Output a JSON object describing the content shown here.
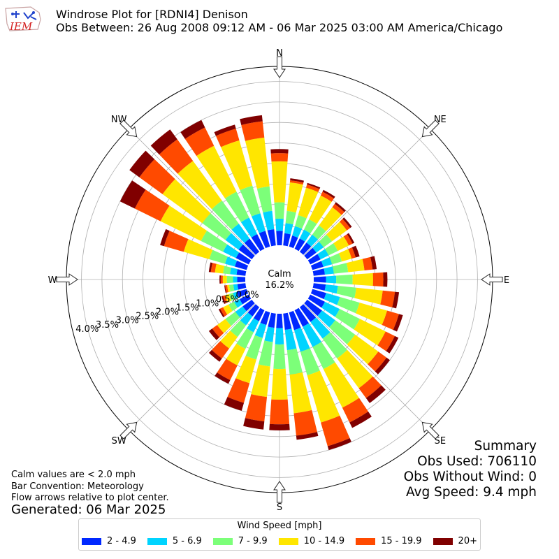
{
  "header": {
    "logo_text": "IEM",
    "title_line1": "Windrose Plot for [RDNI4] Denison",
    "title_line2": "Obs Between: 26 Aug 2008 09:12 AM - 06 Mar 2025 03:00 AM America/Chicago"
  },
  "notes": {
    "calm": "Calm values are < 2.0 mph",
    "convention": "Bar Convention: Meteorology",
    "flow": "Flow arrows relative to plot center.",
    "generated": "Generated: 06 Mar 2025"
  },
  "summary": {
    "heading": "Summary",
    "obs_used": "Obs Used: 706110",
    "obs_without_wind": "Obs Without Wind: 0",
    "avg_speed": "Avg Speed: 9.4 mph"
  },
  "legend": {
    "title": "Wind Speed [mph]",
    "items": [
      {
        "label": "2 - 4.9",
        "color": "#0028ff"
      },
      {
        "label": "5 - 6.9",
        "color": "#00d4ff"
      },
      {
        "label": "7 - 9.9",
        "color": "#7cff79"
      },
      {
        "label": "10 - 14.9",
        "color": "#ffe600"
      },
      {
        "label": "15 - 19.9",
        "color": "#ff4a00"
      },
      {
        "label": "20+",
        "color": "#800000"
      }
    ]
  },
  "chart_data": {
    "type": "windrose",
    "calm_label": "Calm",
    "calm_value": "16.2%",
    "radial_unit": "%",
    "radial_ticks": [
      "0.0%",
      "0.5%",
      "1.0%",
      "1.5%",
      "2.0%",
      "2.5%",
      "3.0%",
      "3.5%",
      "4.0%"
    ],
    "compass_labels": [
      "N",
      "NE",
      "E",
      "SE",
      "S",
      "SW",
      "W",
      "NW"
    ],
    "speed_bins": [
      "2 - 4.9",
      "5 - 6.9",
      "7 - 9.9",
      "10 - 14.9",
      "15 - 19.9",
      "20+"
    ],
    "bin_colors": [
      "#0028ff",
      "#00d4ff",
      "#7cff79",
      "#ffe600",
      "#ff4a00",
      "#800000"
    ],
    "directions_deg": [
      0,
      10,
      20,
      30,
      40,
      50,
      60,
      70,
      80,
      90,
      100,
      110,
      120,
      130,
      140,
      150,
      160,
      170,
      180,
      190,
      200,
      210,
      220,
      230,
      240,
      250,
      260,
      270,
      280,
      290,
      300,
      310,
      320,
      330,
      340,
      350
    ],
    "cumulative_percent": [
      [
        0.35,
        0.65,
        1.05,
        2.05,
        2.25,
        2.35
      ],
      [
        0.3,
        0.55,
        0.85,
        1.55,
        1.6,
        1.65
      ],
      [
        0.28,
        0.52,
        0.8,
        1.5,
        1.58,
        1.62
      ],
      [
        0.28,
        0.52,
        0.8,
        1.45,
        1.55,
        1.6
      ],
      [
        0.28,
        0.52,
        0.8,
        1.35,
        1.45,
        1.5
      ],
      [
        0.28,
        0.5,
        0.75,
        1.2,
        1.3,
        1.35
      ],
      [
        0.28,
        0.5,
        0.75,
        1.05,
        1.15,
        1.2
      ],
      [
        0.28,
        0.5,
        0.75,
        1.0,
        1.1,
        1.2
      ],
      [
        0.28,
        0.5,
        0.85,
        1.25,
        1.45,
        1.55
      ],
      [
        0.3,
        0.55,
        0.95,
        1.45,
        1.7,
        1.8
      ],
      [
        0.3,
        0.6,
        1.05,
        1.7,
        2.0,
        2.1
      ],
      [
        0.35,
        0.7,
        1.2,
        1.9,
        2.2,
        2.3
      ],
      [
        0.4,
        0.8,
        1.35,
        2.05,
        2.3,
        2.4
      ],
      [
        0.45,
        0.85,
        1.45,
        2.15,
        2.4,
        2.5
      ],
      [
        0.45,
        0.95,
        1.55,
        2.45,
        2.75,
        2.9
      ],
      [
        0.45,
        1.0,
        1.6,
        2.65,
        3.05,
        3.2
      ],
      [
        0.45,
        1.0,
        1.6,
        2.8,
        3.4,
        3.5
      ],
      [
        0.4,
        0.9,
        1.5,
        2.45,
        3.0,
        3.1
      ],
      [
        0.35,
        0.75,
        1.35,
        2.1,
        2.7,
        2.85
      ],
      [
        0.35,
        0.7,
        1.3,
        2.05,
        2.65,
        2.85
      ],
      [
        0.32,
        0.65,
        1.2,
        1.8,
        2.3,
        2.5
      ],
      [
        0.3,
        0.6,
        1.05,
        1.5,
        1.9,
        2.0
      ],
      [
        0.28,
        0.55,
        0.9,
        1.25,
        1.55,
        1.65
      ],
      [
        0.28,
        0.5,
        0.8,
        1.05,
        1.2,
        1.3
      ],
      [
        0.25,
        0.4,
        0.55,
        0.7,
        0.78,
        0.82
      ],
      [
        0.25,
        0.35,
        0.45,
        0.55,
        0.6,
        0.64
      ],
      [
        0.2,
        0.3,
        0.4,
        0.45,
        0.5,
        0.52
      ],
      [
        0.2,
        0.3,
        0.45,
        0.55,
        0.6,
        0.63
      ],
      [
        0.22,
        0.38,
        0.55,
        0.75,
        0.85,
        0.9
      ],
      [
        0.3,
        0.55,
        0.95,
        1.6,
        2.1,
        2.2
      ],
      [
        0.35,
        0.7,
        1.3,
        2.4,
        3.1,
        3.5
      ],
      [
        0.4,
        0.8,
        1.5,
        2.7,
        3.4,
        3.7
      ],
      [
        0.4,
        0.85,
        1.55,
        2.75,
        3.4,
        3.7
      ],
      [
        0.4,
        0.85,
        1.55,
        2.8,
        3.3,
        3.5
      ],
      [
        0.4,
        0.85,
        1.55,
        2.7,
        3.0,
        3.1
      ],
      [
        0.4,
        0.85,
        1.45,
        2.65,
        3.05,
        3.2
      ]
    ]
  }
}
